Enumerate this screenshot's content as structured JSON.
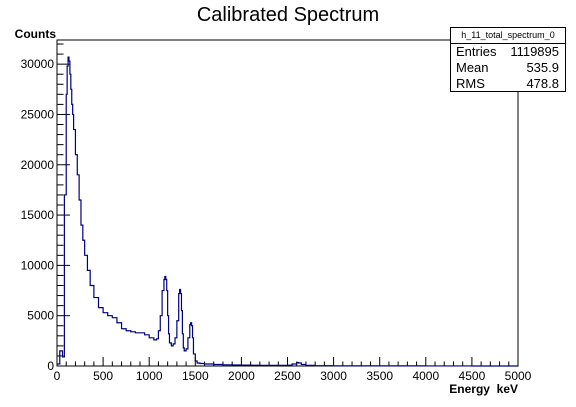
{
  "chart_data": {
    "type": "line",
    "title": "Calibrated Spectrum",
    "ylabel": "Counts",
    "xlabel": "Energy  keV",
    "xlim": [
      0,
      5000
    ],
    "ylim": [
      0,
      32400
    ],
    "x_ticks": [
      0,
      500,
      1000,
      1500,
      2000,
      2500,
      3000,
      3500,
      4000,
      4500,
      5000
    ],
    "y_ticks": [
      0,
      5000,
      10000,
      15000,
      20000,
      25000,
      30000
    ],
    "grid": false,
    "line_color": "#000080",
    "series": [
      {
        "x": [
          0,
          30,
          60,
          80,
          100,
          110,
          120,
          130,
          140,
          150,
          160,
          170,
          180,
          200,
          220,
          240,
          260,
          280,
          300,
          330,
          360,
          400,
          450,
          500,
          550,
          600,
          650,
          700,
          750,
          800,
          850,
          900,
          950,
          1000,
          1050,
          1080,
          1100,
          1120,
          1140,
          1160,
          1170,
          1180,
          1190,
          1200,
          1210,
          1220,
          1240,
          1260,
          1280,
          1300,
          1320,
          1330,
          1340,
          1350,
          1360,
          1370,
          1380,
          1400,
          1420,
          1440,
          1450,
          1460,
          1470,
          1480,
          1500,
          1520,
          1550,
          1600,
          1700,
          1800,
          1900,
          2000,
          2100,
          2200,
          2300,
          2400,
          2500,
          2550,
          2600,
          2620,
          2650,
          2700,
          2800,
          3000,
          3500,
          4000,
          4500,
          5000
        ],
        "y": [
          200,
          1500,
          900,
          17000,
          27000,
          29800,
          30700,
          30300,
          29000,
          27500,
          26000,
          25000,
          23500,
          21000,
          19000,
          16500,
          14000,
          12500,
          11000,
          9500,
          8000,
          6800,
          5800,
          5300,
          5000,
          4800,
          4300,
          3700,
          3500,
          3400,
          3300,
          3300,
          3100,
          2800,
          2600,
          2700,
          3500,
          5000,
          7500,
          8600,
          8900,
          8600,
          7500,
          5000,
          3200,
          2300,
          2000,
          2200,
          2800,
          4500,
          7200,
          7600,
          7200,
          5500,
          3200,
          1800,
          1500,
          1700,
          2800,
          4100,
          4300,
          4000,
          2800,
          1200,
          500,
          300,
          250,
          200,
          150,
          120,
          100,
          90,
          80,
          70,
          60,
          60,
          80,
          200,
          350,
          300,
          150,
          60,
          30,
          20,
          10,
          5,
          3,
          2
        ]
      }
    ]
  },
  "stats": {
    "name": "h_11_total_spectrum_0",
    "rows": [
      {
        "label": "Entries",
        "value": "1119895"
      },
      {
        "label": "Mean",
        "value": "535.9"
      },
      {
        "label": "RMS",
        "value": "478.8"
      }
    ]
  }
}
